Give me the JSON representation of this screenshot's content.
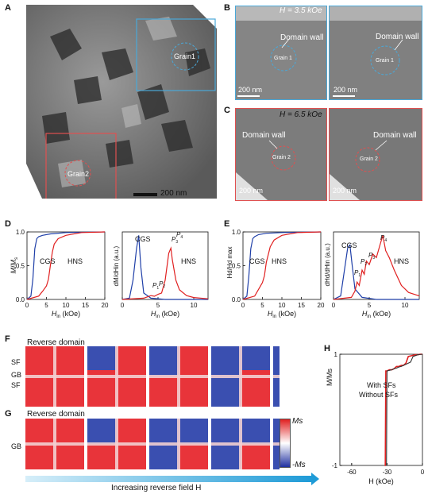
{
  "panel_labels": {
    "A": "A",
    "B": "B",
    "C": "C",
    "D": "D",
    "E": "E",
    "F": "F",
    "G": "G",
    "H": "H"
  },
  "panelA": {
    "grain1": "Grain1",
    "grain2": "Grain2",
    "scale": "200 nm"
  },
  "panelB": {
    "field": "H = 3.5 kOe",
    "domain_wall": "Domain wall",
    "grain": "Grain 1",
    "scale": "200 nm"
  },
  "panelC": {
    "field": "H = 6.5 kOe",
    "domain_wall": "Domain wall",
    "grain": "Grain 2",
    "scale": "200 nm"
  },
  "colors": {
    "cgs": "#1f3fa8",
    "hns": "#e02020",
    "sim_red": "#e8343a",
    "sim_blue": "#3a4fb0",
    "box_blue": "#4aa8d8",
    "box_red": "#e05050"
  },
  "chart_data": [
    {
      "panel": "D-left",
      "type": "line",
      "xlabel": "H_in (kOe)",
      "ylabel": "M/Ms",
      "xlim": [
        0,
        20
      ],
      "ylim": [
        0,
        1
      ],
      "xticks": [
        "0",
        "5",
        "10",
        "15",
        "20"
      ],
      "yticks": [
        "0.0",
        "0.5",
        "1.0"
      ],
      "series": [
        {
          "name": "CGS",
          "x": [
            0,
            1,
            1.5,
            2,
            2.5,
            3,
            4,
            6,
            10,
            20
          ],
          "y": [
            0,
            0.05,
            0.3,
            0.75,
            0.9,
            0.93,
            0.95,
            0.97,
            0.99,
            1.0
          ]
        },
        {
          "name": "HNS",
          "x": [
            0,
            3,
            4,
            5,
            5.5,
            6,
            6.5,
            7,
            8,
            10,
            14,
            20
          ],
          "y": [
            0,
            0.05,
            0.12,
            0.2,
            0.3,
            0.5,
            0.7,
            0.82,
            0.9,
            0.95,
            0.99,
            1.0
          ]
        }
      ]
    },
    {
      "panel": "D-right",
      "type": "line",
      "xlabel": "H_in (kOe)",
      "ylabel": "dM/dH_in (a.u.)",
      "xlim": [
        0,
        12
      ],
      "xticks": [
        "0",
        "5",
        "10"
      ],
      "annotations": [
        "P1",
        "P2",
        "P3",
        "P4"
      ],
      "series": [
        {
          "name": "CGS",
          "x": [
            0,
            1,
            1.5,
            2,
            2.3,
            2.6,
            3,
            4,
            6,
            12
          ],
          "y": [
            0,
            0.02,
            0.3,
            0.8,
            1.0,
            0.5,
            0.1,
            0.02,
            0,
            0
          ]
        },
        {
          "name": "HNS",
          "x": [
            0,
            3,
            4,
            4.5,
            5,
            5.5,
            6,
            6.5,
            6.8,
            7,
            7.5,
            8,
            9,
            10,
            12
          ],
          "y": [
            0,
            0.02,
            0.06,
            0.05,
            0.08,
            0.1,
            0.3,
            0.72,
            0.8,
            0.62,
            0.3,
            0.15,
            0.06,
            0.03,
            0.01
          ]
        }
      ]
    },
    {
      "panel": "E-left",
      "type": "line",
      "xlabel": "H_in (kOe)",
      "ylabel": "H_d/H_d^max",
      "xlim": [
        0,
        20
      ],
      "ylim": [
        0,
        1
      ],
      "xticks": [
        "0",
        "5",
        "10",
        "15",
        "20"
      ],
      "yticks": [
        "0.0",
        "0.5",
        "1.0"
      ],
      "series": [
        {
          "name": "CGS",
          "x": [
            0,
            1,
            1.5,
            2,
            2.5,
            3,
            4,
            6,
            10,
            20
          ],
          "y": [
            0,
            0.05,
            0.35,
            0.75,
            0.9,
            0.93,
            0.96,
            0.98,
            0.99,
            1.0
          ]
        },
        {
          "name": "HNS",
          "x": [
            0,
            3,
            4,
            5,
            5.5,
            6,
            7,
            8,
            10,
            14,
            20
          ],
          "y": [
            0,
            0.05,
            0.15,
            0.25,
            0.35,
            0.55,
            0.78,
            0.88,
            0.95,
            0.99,
            1.0
          ]
        }
      ]
    },
    {
      "panel": "E-right",
      "type": "line",
      "xlabel": "H_in (kOe)",
      "ylabel": "dH_d/dH_in (a.u.)",
      "xlim": [
        0,
        12
      ],
      "xticks": [
        "0",
        "5",
        "10"
      ],
      "annotations": [
        "P1",
        "P2",
        "P3",
        "P4"
      ],
      "series": [
        {
          "name": "CGS",
          "x": [
            0,
            1,
            1.5,
            2,
            2.3,
            2.6,
            3,
            4,
            6,
            12
          ],
          "y": [
            0,
            0.05,
            0.4,
            0.75,
            0.78,
            0.5,
            0.15,
            0.03,
            0,
            0
          ]
        },
        {
          "name": "HNS",
          "x": [
            0,
            2.5,
            3,
            3.3,
            3.6,
            4,
            4.3,
            4.6,
            5,
            5.5,
            6,
            6.5,
            6.9,
            7.3,
            7.8,
            8.5,
            9.5,
            10.5,
            12
          ],
          "y": [
            0,
            0.03,
            0.12,
            0.25,
            0.2,
            0.42,
            0.36,
            0.55,
            0.5,
            0.65,
            0.6,
            0.78,
            0.92,
            0.7,
            0.6,
            0.42,
            0.2,
            0.1,
            0.05
          ]
        }
      ]
    },
    {
      "panel": "H",
      "type": "line",
      "xlabel": "H (kOe)",
      "ylabel": "M/Ms",
      "xlim": [
        -70,
        0
      ],
      "ylim": [
        -1,
        1
      ],
      "xticks": [
        "-60",
        "-30",
        "0"
      ],
      "yticks": [
        "-1",
        "1"
      ],
      "series": [
        {
          "name": "With SFs",
          "x": [
            -32,
            -31.5,
            -31,
            -30,
            -28,
            -26,
            -24,
            -22,
            -20,
            -18,
            -16,
            -14,
            -12,
            -10,
            -8,
            -6,
            -4,
            -2,
            0
          ],
          "y": [
            -1,
            -1,
            0.7,
            0.7,
            0.72,
            0.72,
            0.74,
            0.78,
            0.78,
            0.8,
            0.8,
            0.84,
            0.96,
            0.97,
            0.98,
            0.99,
            0.99,
            1.0,
            1.0
          ]
        },
        {
          "name": "Without SFs",
          "x": [
            -31,
            -30.5,
            -30,
            -28,
            -26,
            -24,
            -22,
            -20,
            -18,
            -16,
            -14,
            -12,
            -10,
            -8,
            -4,
            0
          ],
          "y": [
            -1,
            -1,
            0.7,
            0.71,
            0.72,
            0.74,
            0.75,
            0.77,
            0.78,
            0.8,
            0.82,
            0.84,
            0.86,
            0.96,
            0.99,
            1.0
          ]
        }
      ]
    }
  ],
  "panelD": {
    "cgs": "CGS",
    "hns": "HNS",
    "p1": "P",
    "p2": "P",
    "p3": "P",
    "p4": "P",
    "sub1": "1",
    "sub2": "2",
    "sub3": "3",
    "sub4": "4"
  },
  "panelF": {
    "title": "Reverse domain",
    "sf1": "SF",
    "gb": "GB",
    "sf2": "SF"
  },
  "panelG": {
    "title": "Reverse domain",
    "gb": "GB"
  },
  "colorbar": {
    "top": "Ms",
    "bottom": "-Ms"
  },
  "arrow_label": "Increasing reverse field H",
  "panelH": {
    "with": "With SFs",
    "without": "Without SFs",
    "xlabel": "H (kOe)",
    "ylabel": "M/Ms"
  }
}
